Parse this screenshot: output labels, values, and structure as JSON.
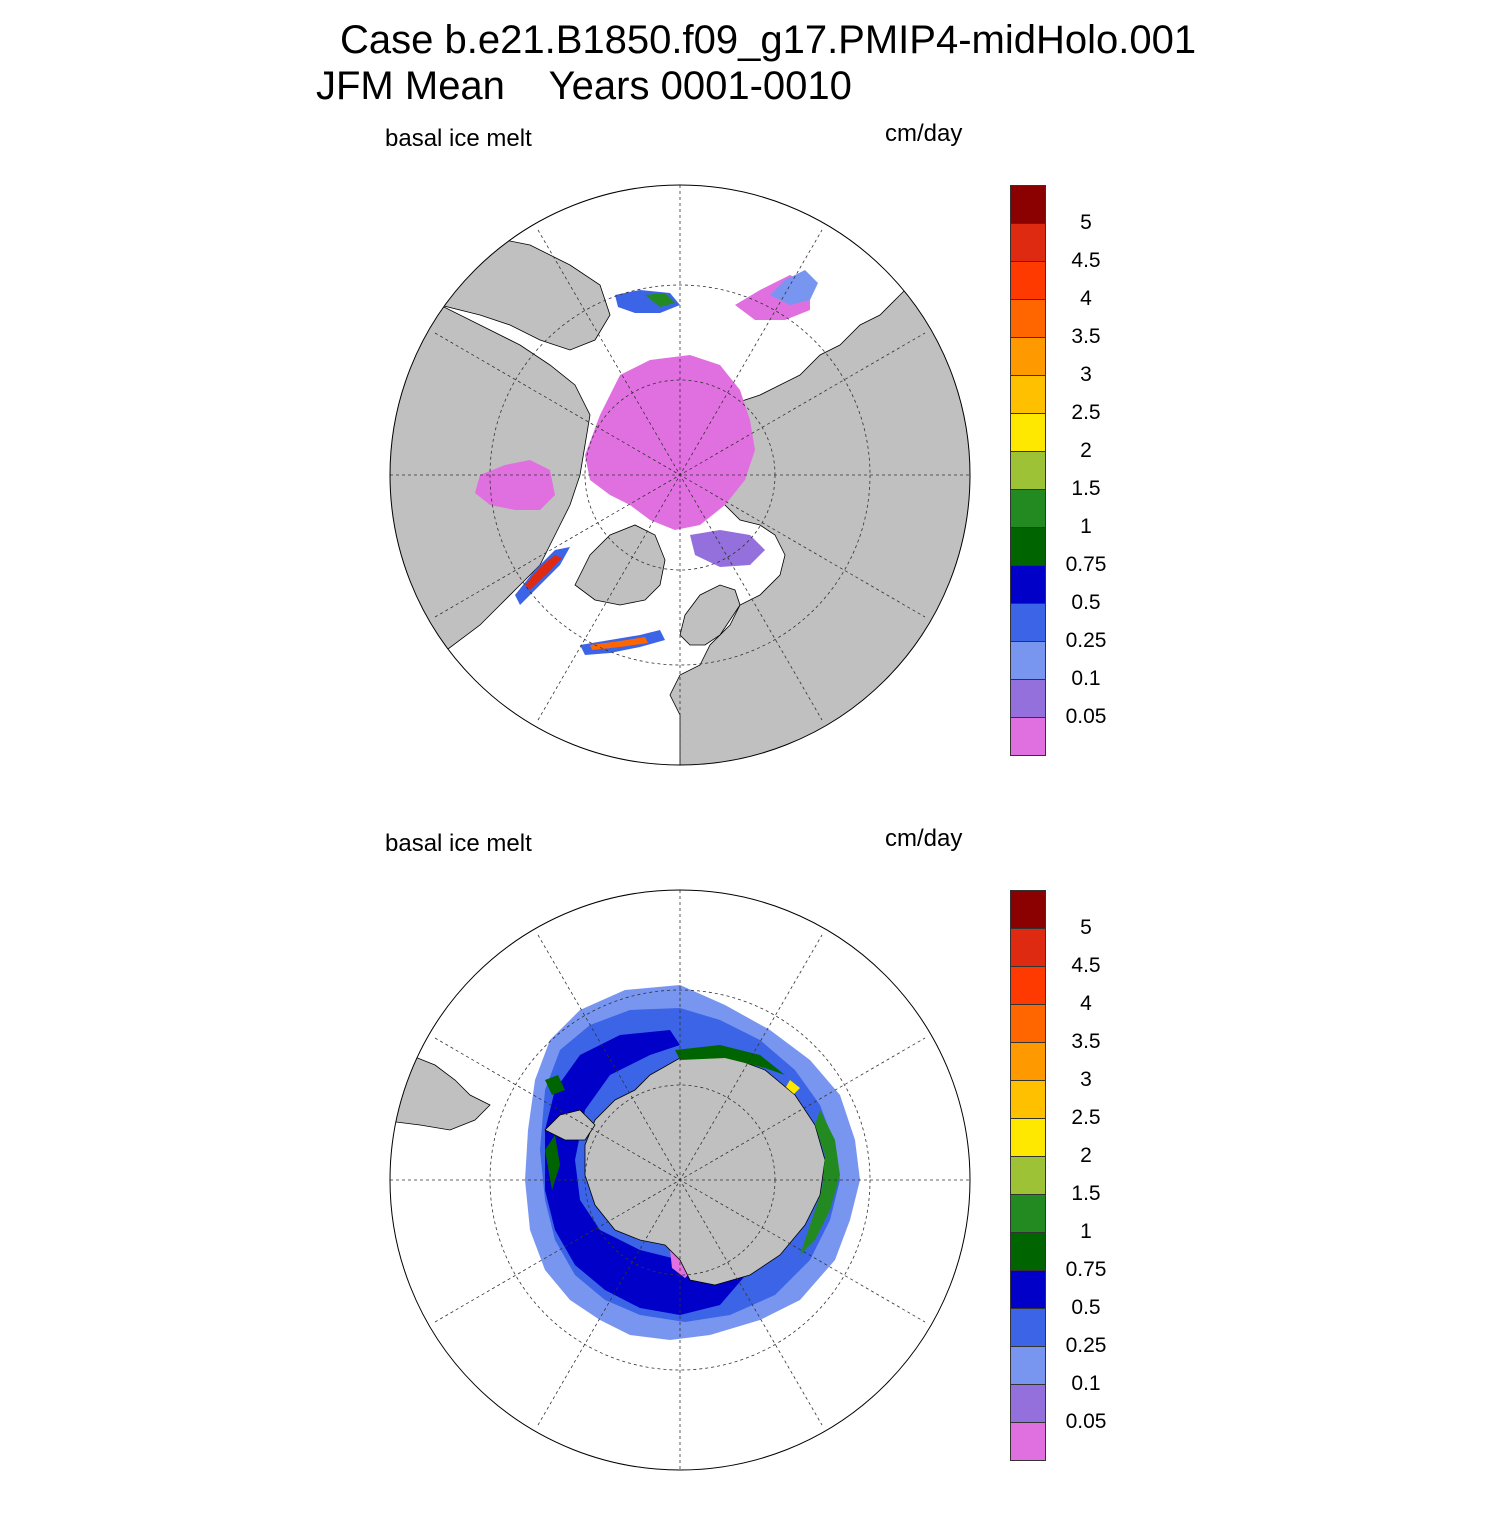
{
  "header": {
    "case_line": "Case b.e21.B1850.f09_g17.PMIP4-midHolo.001",
    "season_line": "JFM Mean    Years 0001-0010"
  },
  "panels": [
    {
      "hemisphere": "north",
      "variable_label": "basal ice melt",
      "units_label": "cm/day"
    },
    {
      "hemisphere": "south",
      "variable_label": "basal ice melt",
      "units_label": "cm/day"
    }
  ],
  "colorbar": {
    "colors_top_to_bottom": [
      "#8b0000",
      "#dd2a10",
      "#ff3a00",
      "#ff6600",
      "#ff9900",
      "#ffc000",
      "#ffe800",
      "#9dc236",
      "#238a22",
      "#006400",
      "#0000c8",
      "#3c64e6",
      "#7896f0",
      "#9370db",
      "#e070e0"
    ],
    "labels_top_to_bottom": [
      "5",
      "4.5",
      "4",
      "3.5",
      "3",
      "2.5",
      "2",
      "1.5",
      "1",
      "0.75",
      "0.5",
      "0.25",
      "0.1",
      "0.05"
    ]
  },
  "colors": {
    "land": "#c0c0c0",
    "ocean": "#ffffff",
    "grid": "#333333"
  }
}
